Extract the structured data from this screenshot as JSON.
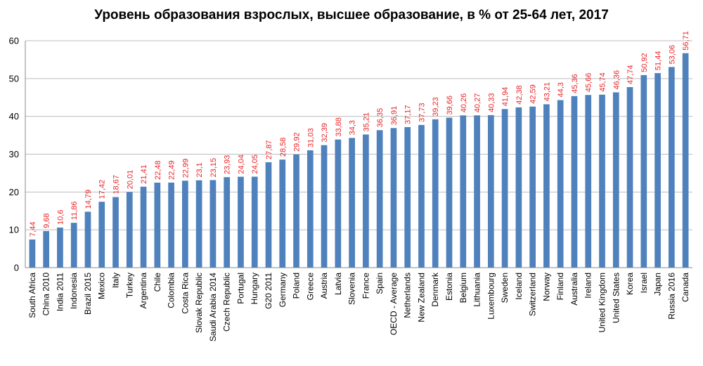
{
  "chart_data": {
    "type": "bar",
    "title": "Уровень образования взрослых, высшее образование, в % от 25-64 лет,  2017",
    "xlabel": "",
    "ylabel": "",
    "ylim": [
      0,
      60
    ],
    "yticks": [
      0,
      10,
      20,
      30,
      40,
      50,
      60
    ],
    "grid": true,
    "bar_color": "#4f81bd",
    "label_color": "#e8262b",
    "categories": [
      "South Africa",
      "China 2010",
      "India 2011",
      "Indonesia",
      "Brazil 2015",
      "Mexico",
      "Italy",
      "Turkey",
      "Argentina",
      "Chile",
      "Colombia",
      "Costa Rica",
      "Slovak Republic",
      "Saudi Arabia 2014",
      "Czech Republic",
      "Portugal",
      "Hungary",
      "G20 2011",
      "Germany",
      "Poland",
      "Greece",
      "Austria",
      "Latvia",
      "Slovenia",
      "France",
      "Spain",
      "OECD - Average",
      "Netherlands",
      "New Zealand",
      "Denmark",
      "Estonia",
      "Belgium",
      "Lithuania",
      "Luxembourg",
      "Sweden",
      "Iceland",
      "Switzerland",
      "Norway",
      "Finland",
      "Australia",
      "Ireland",
      "United Kingdom",
      "United States",
      "Korea",
      "Israel",
      "Japan",
      "Russia 2016",
      "Canada"
    ],
    "values": [
      7.44,
      9.68,
      10.6,
      11.86,
      14.79,
      17.42,
      18.67,
      20.01,
      21.41,
      22.48,
      22.49,
      22.99,
      23.1,
      23.15,
      23.93,
      24.04,
      24.05,
      27.87,
      28.58,
      29.92,
      31.03,
      32.39,
      33.88,
      34.3,
      35.21,
      36.35,
      36.91,
      37.17,
      37.73,
      39.23,
      39.66,
      40.26,
      40.27,
      40.33,
      41.94,
      42.38,
      42.59,
      43.21,
      44.3,
      45.36,
      45.66,
      45.74,
      46.36,
      47.74,
      50.92,
      51.44,
      53.06,
      56.71
    ],
    "value_labels": [
      "7,44",
      "9,68",
      "10,6",
      "11,86",
      "14,79",
      "17,42",
      "18,67",
      "20,01",
      "21,41",
      "22,48",
      "22,49",
      "22,99",
      "23,1",
      "23,15",
      "23,93",
      "24,04",
      "24,05",
      "27,87",
      "28,58",
      "29,92",
      "31,03",
      "32,39",
      "33,88",
      "34,3",
      "35,21",
      "36,35",
      "36,91",
      "37,17",
      "37,73",
      "39,23",
      "39,66",
      "40,26",
      "40,27",
      "40,33",
      "41,94",
      "42,38",
      "42,59",
      "43,21",
      "44,3",
      "45,36",
      "45,66",
      "45,74",
      "46,36",
      "47,74",
      "50,92",
      "51,44",
      "53,06",
      "56,71"
    ]
  }
}
